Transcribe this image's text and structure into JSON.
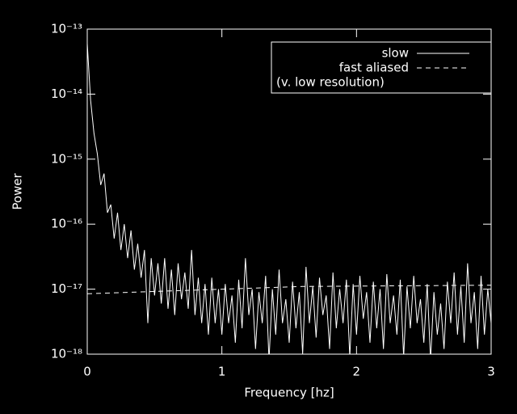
{
  "chart_data": {
    "type": "line",
    "xlabel": "Frequency [hz]",
    "ylabel": "Power",
    "xlim": [
      0,
      3
    ],
    "xticks": [
      0,
      1,
      2,
      3
    ],
    "ylim": [
      1e-18,
      1e-13
    ],
    "ylog": true,
    "yticks": [
      {
        "value": 1e-18,
        "label": "10⁻¹⁸"
      },
      {
        "value": 1e-17,
        "label": "10⁻¹⁷"
      },
      {
        "value": 1e-16,
        "label": "10⁻¹⁶"
      },
      {
        "value": 1e-15,
        "label": "10⁻¹⁵"
      },
      {
        "value": 1e-14,
        "label": "10⁻¹⁴"
      },
      {
        "value": 1e-13,
        "label": "10⁻¹³"
      }
    ],
    "legend": "top-right",
    "legend_note": "(v. low resolution)",
    "series": [
      {
        "name": "slow",
        "color": "#ffffff",
        "dash": false,
        "x": [
          0,
          0.025,
          0.05,
          0.075,
          0.1,
          0.125,
          0.15,
          0.175,
          0.2,
          0.225,
          0.25,
          0.275,
          0.3,
          0.325,
          0.35,
          0.375,
          0.4,
          0.425,
          0.45,
          0.475,
          0.5,
          0.525,
          0.55,
          0.575,
          0.6,
          0.625,
          0.65,
          0.675,
          0.7,
          0.725,
          0.75,
          0.775,
          0.8,
          0.825,
          0.85,
          0.875,
          0.9,
          0.925,
          0.95,
          0.975,
          1,
          1.025,
          1.05,
          1.075,
          1.1,
          1.125,
          1.15,
          1.175,
          1.2,
          1.225,
          1.25,
          1.275,
          1.3,
          1.325,
          1.35,
          1.375,
          1.4,
          1.425,
          1.45,
          1.475,
          1.5,
          1.525,
          1.55,
          1.575,
          1.6,
          1.625,
          1.65,
          1.675,
          1.7,
          1.725,
          1.75,
          1.775,
          1.8,
          1.825,
          1.85,
          1.875,
          1.9,
          1.925,
          1.95,
          1.975,
          2,
          2.025,
          2.05,
          2.075,
          2.1,
          2.125,
          2.15,
          2.175,
          2.2,
          2.225,
          2.25,
          2.275,
          2.3,
          2.325,
          2.35,
          2.375,
          2.4,
          2.425,
          2.45,
          2.475,
          2.5,
          2.525,
          2.55,
          2.575,
          2.6,
          2.625,
          2.65,
          2.675,
          2.7,
          2.725,
          2.75,
          2.775,
          2.8,
          2.825,
          2.85,
          2.875,
          2.9,
          2.925,
          2.95,
          2.975,
          3
        ],
        "values": [
          6e-14,
          8e-15,
          2.5e-15,
          1.2e-15,
          4e-16,
          6e-16,
          1.5e-16,
          2e-16,
          6e-17,
          1.5e-16,
          4e-17,
          1e-16,
          3e-17,
          8e-17,
          2e-17,
          5e-17,
          1.5e-17,
          4e-17,
          3e-18,
          3e-17,
          8e-18,
          2.5e-17,
          6e-18,
          3e-17,
          5e-18,
          2e-17,
          4e-18,
          2.5e-17,
          7e-18,
          1.8e-17,
          5e-18,
          4e-17,
          4e-18,
          1.5e-17,
          3e-18,
          1.2e-17,
          2e-18,
          1.5e-17,
          3e-18,
          1e-17,
          2e-18,
          1.2e-17,
          3e-18,
          8e-18,
          1.5e-18,
          1.4e-17,
          2.5e-18,
          3e-17,
          4e-18,
          1e-17,
          1.2e-18,
          9e-18,
          3e-18,
          1.6e-17,
          8e-19,
          1e-17,
          2e-18,
          2e-17,
          3e-18,
          7e-18,
          1.5e-18,
          1.3e-17,
          2.5e-18,
          9e-18,
          1e-18,
          2.2e-17,
          3e-18,
          1.1e-17,
          1.8e-18,
          1.5e-17,
          4e-18,
          8e-18,
          1.2e-18,
          1.8e-17,
          2.5e-18,
          1e-17,
          3e-18,
          1.4e-17,
          9e-19,
          1.2e-17,
          2e-18,
          1.6e-17,
          3.5e-18,
          9e-18,
          1.5e-18,
          1.3e-17,
          2.5e-18,
          1e-17,
          1.2e-18,
          1.7e-17,
          3e-18,
          8e-18,
          2e-18,
          1.4e-17,
          9e-19,
          1.1e-17,
          2.5e-18,
          1.6e-17,
          3e-18,
          7e-18,
          1.5e-18,
          1.2e-17,
          8e-19,
          9e-18,
          2e-18,
          6e-18,
          1.2e-18,
          1.3e-17,
          3e-18,
          1.8e-17,
          2e-18,
          1.1e-17,
          1.5e-18,
          2.5e-17,
          3e-18,
          9e-18,
          1.2e-18,
          1.6e-17,
          2e-18,
          1e-17,
          3e-18
        ]
      },
      {
        "name": "fast aliased",
        "color": "#ffffff",
        "dash": true,
        "x": [
          0,
          1.6,
          3
        ],
        "values": [
          8.5e-18,
          1.1e-17,
          1.15e-17
        ]
      }
    ]
  }
}
